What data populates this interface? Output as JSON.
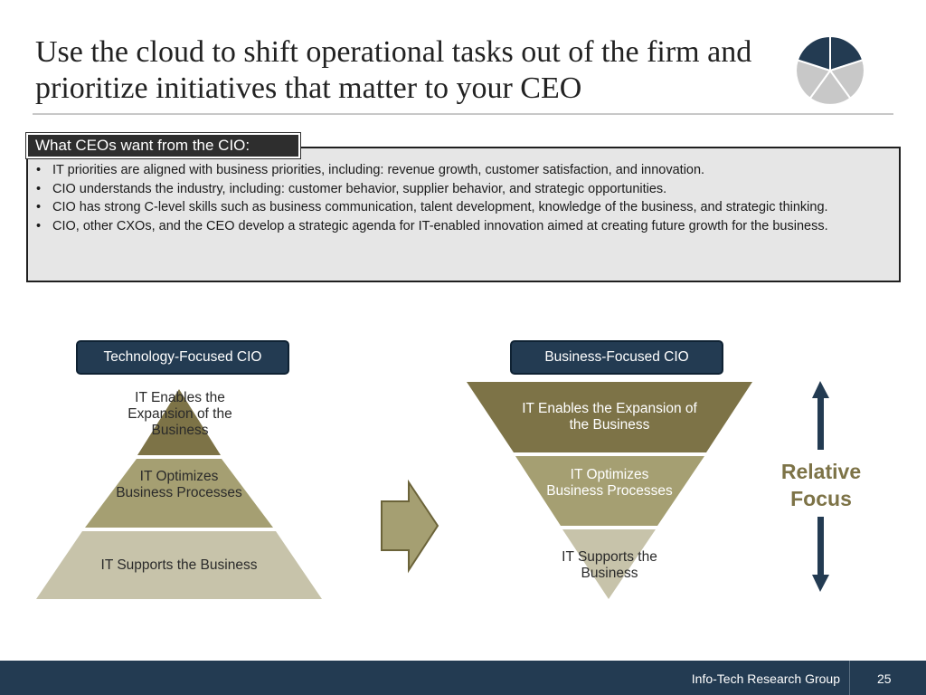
{
  "slide": {
    "title": "Use the cloud to shift operational tasks out of the firm and prioritize initiatives that matter to your CEO"
  },
  "box": {
    "label": "What CEOs want from the CIO:",
    "bullets": [
      "IT priorities are aligned with business priorities, including: revenue growth, customer satisfaction, and innovation.",
      "CIO understands the industry, including: customer behavior, supplier behavior, and strategic opportunities.",
      "CIO has strong C-level skills such as business communication, talent development, knowledge of the business, and strategic thinking.",
      "CIO, other CXOs, and the CEO develop a strategic agenda for IT-enabled innovation aimed at creating future growth for the business."
    ]
  },
  "left_diagram": {
    "title": "Technology-Focused CIO",
    "tiers": {
      "top": "IT Enables the Expansion of the Business",
      "middle": "IT Optimizes Business Processes",
      "bottom": "IT Supports the Business"
    }
  },
  "right_diagram": {
    "title": "Business-Focused CIO",
    "tiers": {
      "top": "IT Enables the Expansion of the Business",
      "middle": "IT Optimizes Business Processes",
      "bottom": "IT Supports the Business"
    }
  },
  "focus": {
    "label": "Relative Focus"
  },
  "footer": {
    "organization": "Info-Tech Research Group",
    "page_number": "25"
  },
  "colors": {
    "navy": "#233b52",
    "olive_dark": "#7d7347",
    "olive_mid": "#a59f72",
    "olive_light": "#c7c3aa",
    "logo_dark": "#233b52",
    "logo_light": "#c8c8c8"
  }
}
